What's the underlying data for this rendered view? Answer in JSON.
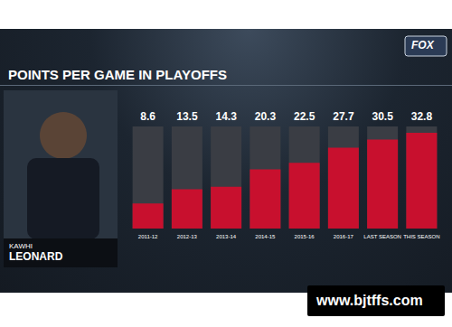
{
  "chart_data": {
    "type": "bar",
    "title": "POINTS PER GAME IN PLAYOFFS",
    "categories": [
      "2011-12",
      "2012-13",
      "2013-14",
      "2014-15",
      "2015-16",
      "2016-17",
      "LAST SEASON",
      "THIS SEASON"
    ],
    "values": [
      8.6,
      13.5,
      14.3,
      20.3,
      22.5,
      27.7,
      30.5,
      32.8
    ],
    "color": "#c8102e",
    "ylim": [
      0,
      35
    ],
    "grid": false,
    "data_labels": true,
    "tick_labels": "x",
    "player_name": [
      "KAWHI",
      "LEONARD"
    ],
    "network": "FOX",
    "watermark": "www.bjtffs.com"
  }
}
